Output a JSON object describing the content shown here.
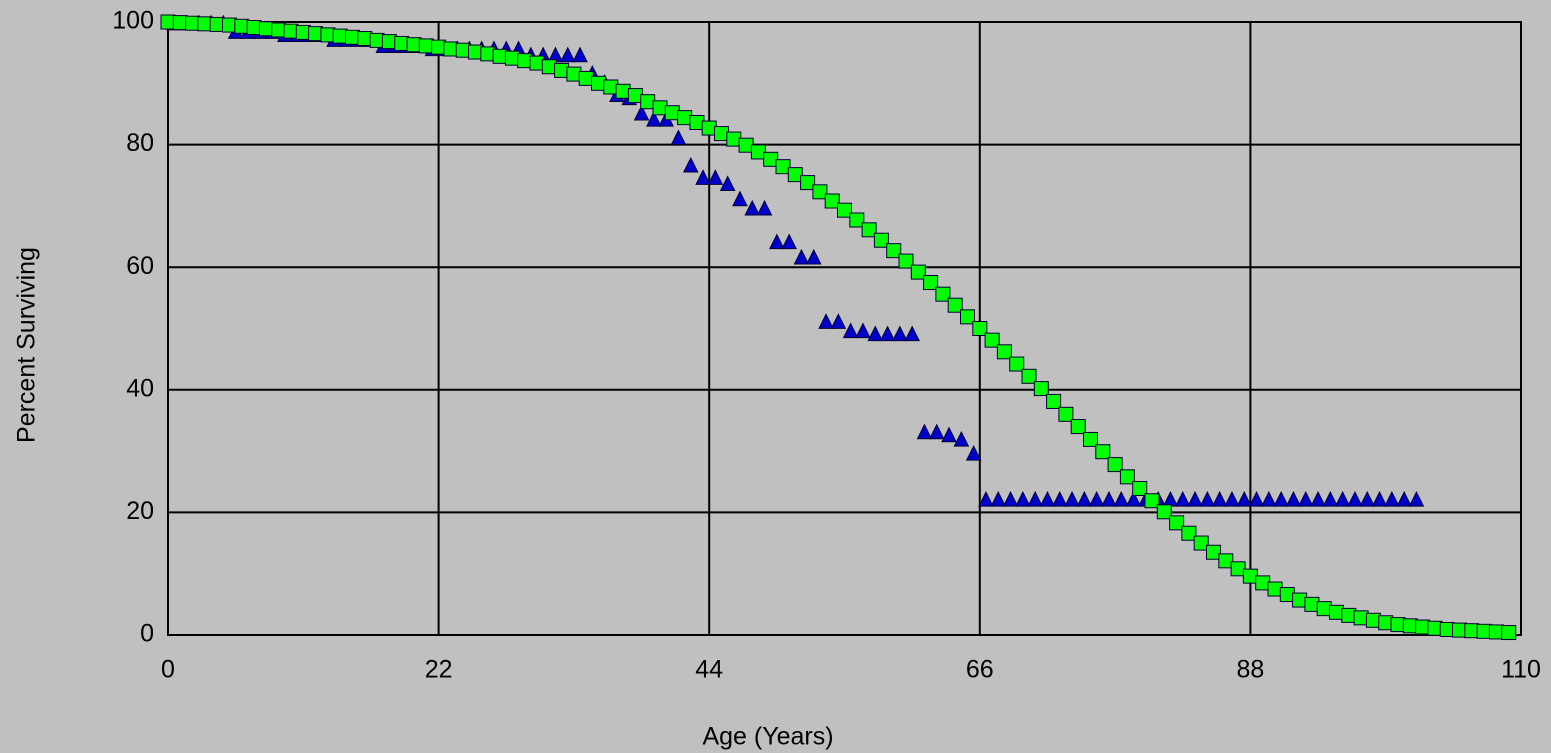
{
  "chart_data": {
    "type": "scatter",
    "x_label": "Age (Years)",
    "y_label": "Percent Surviving",
    "xlim": [
      0,
      110
    ],
    "xticks": [
      0,
      22,
      44,
      66,
      88,
      110
    ],
    "ylim": [
      0,
      100
    ],
    "yticks": [
      0,
      20,
      40,
      60,
      80,
      100
    ],
    "grid": true,
    "series": [
      {
        "color": "#0000cc",
        "marker": "triangle",
        "x": [
          0.5,
          1.5,
          2.5,
          3.5,
          4.5,
          5.5,
          6.5,
          7.5,
          8.5,
          9.5,
          10.5,
          11.5,
          12.5,
          13.5,
          14.5,
          15.5,
          16.5,
          17.5,
          18.5,
          19.5,
          20.5,
          21.5,
          22.5,
          23.5,
          24.5,
          25.5,
          26.5,
          27.5,
          28.5,
          29.5,
          30.5,
          31.5,
          32.5,
          33.5,
          34.5,
          35.5,
          36.5,
          37.5,
          38.5,
          39.5,
          40.5,
          41.5,
          42.5,
          43.5,
          44.5,
          45.5,
          46.5,
          47.5,
          48.5,
          49.5,
          50.5,
          51.5,
          52.5,
          53.5,
          54.5,
          55.5,
          56.5,
          57.5,
          58.5,
          59.5,
          60.5,
          61.5,
          62.5,
          63.5,
          64.5,
          65.5,
          66.5,
          67.5,
          68.5,
          69.5,
          70.5,
          71.5,
          72.5,
          73.5,
          74.5,
          75.5,
          76.5,
          77.5,
          78.5,
          79.5,
          80.5,
          81.5,
          82.5,
          83.5,
          84.5,
          85.5,
          86.5,
          87.5,
          88.5,
          89.5,
          90.5,
          91.5,
          92.5,
          93.5,
          94.5,
          95.5,
          96.5,
          97.5,
          98.5,
          99.5,
          100.5,
          101.5
        ],
        "values": [
          99.7,
          99.7,
          99.7,
          99.7,
          99.7,
          98.3,
          98.3,
          98.3,
          98.3,
          97.8,
          97.8,
          97.8,
          97.8,
          97,
          97,
          97,
          97,
          96,
          96,
          96,
          96,
          95.5,
          95.5,
          95.5,
          95.5,
          95.5,
          95.5,
          95.5,
          95.5,
          94.5,
          94.5,
          94.5,
          94.5,
          94.5,
          91.5,
          90,
          88,
          87.5,
          85,
          84,
          84,
          81,
          76.5,
          74.5,
          74.5,
          73.5,
          71,
          69.5,
          69.5,
          64,
          64,
          61.5,
          61.5,
          51,
          51,
          49.5,
          49.5,
          49,
          49,
          49,
          49,
          33,
          33,
          32.5,
          31.8,
          29.5,
          22,
          22,
          22,
          22,
          22,
          22,
          22,
          22,
          22,
          22,
          22,
          22,
          22,
          22,
          22,
          22,
          22,
          22,
          22,
          22,
          22,
          22,
          22,
          22,
          22,
          22,
          22,
          22,
          22,
          22,
          22,
          22,
          22,
          22,
          22,
          22
        ]
      },
      {
        "color": "#00ff00",
        "marker": "square",
        "x": [
          0,
          1,
          2,
          3,
          4,
          5,
          6,
          7,
          8,
          9,
          10,
          11,
          12,
          13,
          14,
          15,
          16,
          17,
          18,
          19,
          20,
          21,
          22,
          23,
          24,
          25,
          26,
          27,
          28,
          29,
          30,
          31,
          32,
          33,
          34,
          35,
          36,
          37,
          38,
          39,
          40,
          41,
          42,
          43,
          44,
          45,
          46,
          47,
          48,
          49,
          50,
          51,
          52,
          53,
          54,
          55,
          56,
          57,
          58,
          59,
          60,
          61,
          62,
          63,
          64,
          65,
          66,
          67,
          68,
          69,
          70,
          71,
          72,
          73,
          74,
          75,
          76,
          77,
          78,
          79,
          80,
          81,
          82,
          83,
          84,
          85,
          86,
          87,
          88,
          89,
          90,
          91,
          92,
          93,
          94,
          95,
          96,
          97,
          98,
          99,
          100,
          101,
          102,
          103,
          104,
          105,
          106,
          107,
          108,
          109
        ],
        "values": [
          100,
          99.9,
          99.8,
          99.7,
          99.6,
          99.5,
          99.3,
          99.1,
          98.9,
          98.7,
          98.5,
          98.3,
          98.1,
          97.9,
          97.7,
          97.5,
          97.3,
          97,
          96.8,
          96.5,
          96.3,
          96.1,
          95.9,
          95.6,
          95.4,
          95.1,
          94.8,
          94.4,
          94.1,
          93.7,
          93.3,
          92.7,
          92.1,
          91.5,
          90.8,
          90,
          89.4,
          88.7,
          88,
          87,
          86,
          85.2,
          84.4,
          83.6,
          82.7,
          81.8,
          80.9,
          79.9,
          78.8,
          77.6,
          76.4,
          75.1,
          73.8,
          72.3,
          70.8,
          69.3,
          67.7,
          66.1,
          64.4,
          62.7,
          61,
          59.2,
          57.5,
          55.6,
          53.8,
          51.9,
          50,
          48.1,
          46.2,
          44.2,
          42.2,
          40.2,
          38.1,
          36,
          34,
          31.9,
          29.9,
          27.8,
          25.8,
          23.9,
          21.9,
          20.1,
          18.3,
          16.6,
          15,
          13.5,
          12.1,
          10.8,
          9.6,
          8.5,
          7.5,
          6.6,
          5.7,
          5,
          4.3,
          3.7,
          3.2,
          2.8,
          2.4,
          2,
          1.7,
          1.5,
          1.3,
          1.1,
          0.9,
          0.8,
          0.7,
          0.6,
          0.5,
          0.4
        ]
      }
    ]
  }
}
